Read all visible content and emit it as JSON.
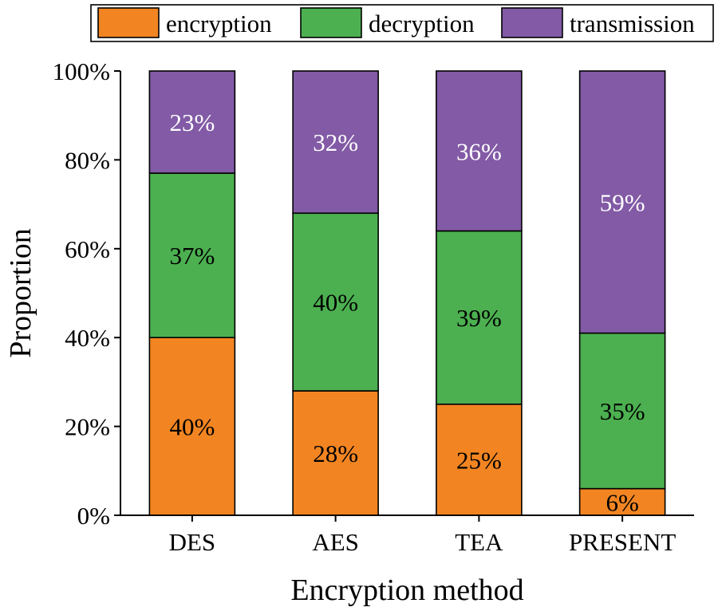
{
  "chart_data": {
    "type": "bar",
    "stacked": true,
    "categories": [
      "DES",
      "AES",
      "TEA",
      "PRESENT"
    ],
    "series": [
      {
        "name": "encryption",
        "values": [
          40,
          28,
          25,
          6
        ],
        "labels": [
          "40%",
          "28%",
          "25%",
          "6%"
        ],
        "color": "#f28522",
        "label_color": "#000000"
      },
      {
        "name": "decryption",
        "values": [
          37,
          40,
          39,
          35
        ],
        "labels": [
          "37%",
          "40%",
          "39%",
          "35%"
        ],
        "color": "#4cb050",
        "label_color": "#000000"
      },
      {
        "name": "transmission",
        "values": [
          23,
          32,
          36,
          59
        ],
        "labels": [
          "23%",
          "32%",
          "36%",
          "59%"
        ],
        "color": "#825aa5",
        "label_color": "#ffffff"
      }
    ],
    "xlabel": "Encryption method",
    "ylabel": "Proportion",
    "ylim": [
      0,
      100
    ],
    "yticks": [
      0,
      20,
      40,
      60,
      80,
      100
    ],
    "ytick_labels": [
      "0%",
      "20%",
      "40%",
      "60%",
      "80%",
      "100%"
    ],
    "legend_position": "top",
    "grid": false
  }
}
